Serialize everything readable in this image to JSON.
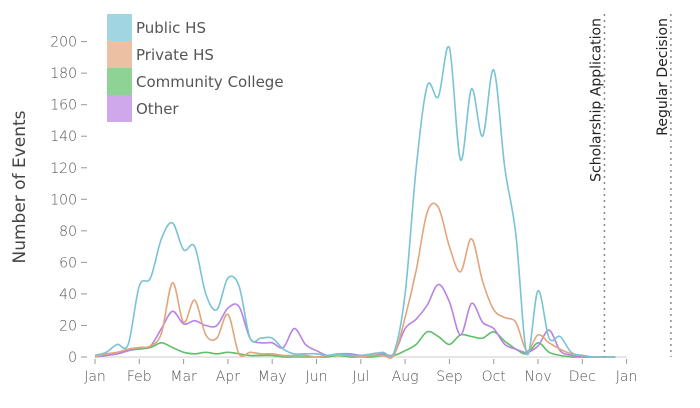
{
  "chart_data": {
    "type": "line",
    "title": "",
    "xlabel": "",
    "ylabel": "Number of Events",
    "ylim": [
      0,
      210
    ],
    "yticks": [
      0,
      20,
      40,
      60,
      80,
      100,
      120,
      140,
      160,
      180,
      200
    ],
    "xticks": [
      "Jan",
      "Feb",
      "Mar",
      "Apr",
      "May",
      "Jun",
      "Jul",
      "Aug",
      "Sep",
      "Oct",
      "Nov",
      "Dec",
      "Jan"
    ],
    "legend_position": "top-left",
    "x": [
      0,
      0.25,
      0.5,
      0.75,
      1,
      1.25,
      1.5,
      1.75,
      2,
      2.25,
      2.5,
      2.75,
      3,
      3.25,
      3.5,
      3.75,
      4,
      4.25,
      4.5,
      4.75,
      5,
      5.25,
      5.5,
      5.75,
      6,
      6.25,
      6.5,
      6.75,
      7,
      7.25,
      7.5,
      7.75,
      8,
      8.25,
      8.5,
      8.75,
      9,
      9.25,
      9.5,
      9.75,
      10,
      10.25,
      10.5,
      10.75,
      11,
      11.25,
      11.5,
      11.75
    ],
    "series": [
      {
        "name": "Public HS",
        "color": "#79c3d6",
        "values": [
          1,
          3,
          8,
          8,
          45,
          50,
          75,
          85,
          68,
          70,
          40,
          30,
          50,
          45,
          12,
          12,
          12,
          5,
          2,
          2,
          2,
          1,
          2,
          1,
          1,
          2,
          3,
          3,
          40,
          120,
          172,
          165,
          196,
          125,
          170,
          140,
          182,
          120,
          78,
          2,
          42,
          12,
          13,
          3,
          1,
          0,
          0,
          0
        ]
      },
      {
        "name": "Private HS",
        "color": "#e3a57c",
        "values": [
          0,
          2,
          3,
          5,
          6,
          7,
          15,
          47,
          22,
          36,
          14,
          12,
          27,
          2,
          3,
          2,
          2,
          1,
          1,
          1,
          0,
          1,
          1,
          1,
          0,
          1,
          1,
          1,
          25,
          55,
          92,
          95,
          70,
          54,
          75,
          48,
          30,
          25,
          22,
          4,
          14,
          9,
          5,
          2,
          1,
          0,
          0,
          0
        ]
      },
      {
        "name": "Community College",
        "color": "#5fbf6a",
        "values": [
          0,
          1,
          2,
          4,
          5,
          6,
          9,
          6,
          3,
          2,
          3,
          2,
          3,
          2,
          1,
          1,
          1,
          0,
          0,
          0,
          0,
          0,
          1,
          0,
          0,
          0,
          1,
          1,
          4,
          8,
          16,
          13,
          8,
          14,
          13,
          12,
          16,
          10,
          5,
          2,
          9,
          3,
          1,
          0,
          0,
          0,
          0,
          0
        ]
      },
      {
        "name": "Other",
        "color": "#b983e2",
        "values": [
          0,
          1,
          2,
          4,
          6,
          7,
          18,
          29,
          21,
          23,
          20,
          20,
          31,
          32,
          12,
          9,
          9,
          6,
          18,
          8,
          4,
          1,
          2,
          2,
          1,
          1,
          2,
          2,
          18,
          24,
          33,
          46,
          35,
          14,
          34,
          22,
          18,
          8,
          5,
          3,
          7,
          17,
          4,
          1,
          0,
          0,
          0,
          0
        ]
      }
    ],
    "annotations": [
      {
        "text": "Scholarship Application",
        "x": 11.5
      },
      {
        "text": "Regular Decision",
        "x": 13.0
      }
    ]
  }
}
